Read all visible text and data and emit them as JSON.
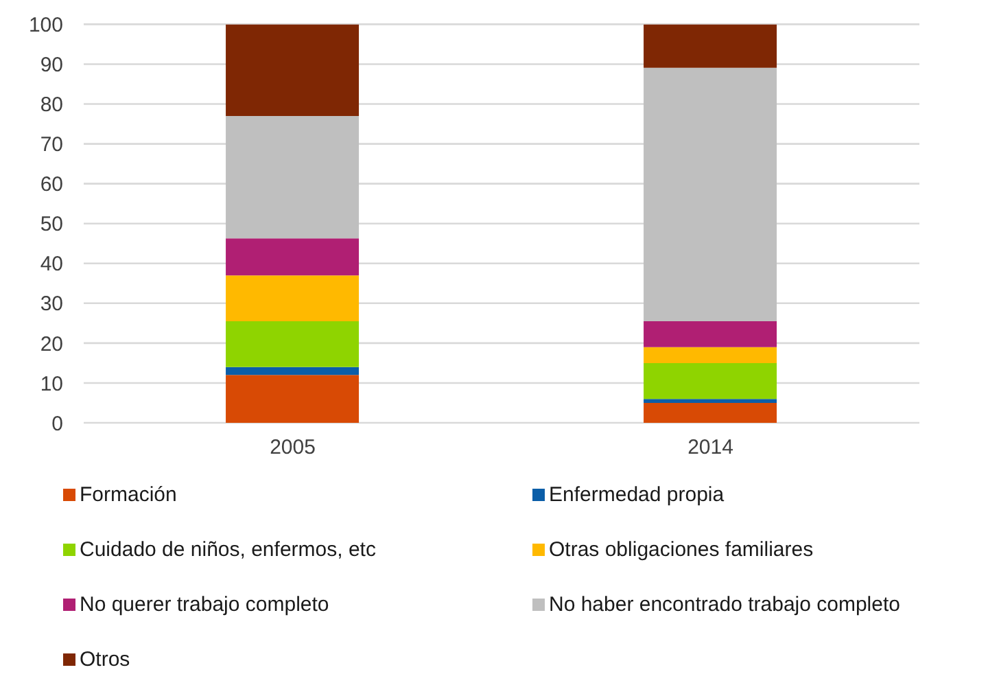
{
  "chart_data": {
    "type": "bar",
    "stacked": true,
    "categories": [
      "2005",
      "2014"
    ],
    "series": [
      {
        "name": "Formación",
        "color": "#d84a05",
        "values": [
          12,
          5
        ]
      },
      {
        "name": "Enfermedad propia",
        "color": "#0b5ea8",
        "values": [
          2,
          1
        ]
      },
      {
        "name": "Cuidado de niños, enfermos, etc",
        "color": "#8fd400",
        "values": [
          11.5,
          9
        ]
      },
      {
        "name": "Otras obligaciones familiares",
        "color": "#ffb900",
        "values": [
          11.5,
          4
        ]
      },
      {
        "name": "No querer trabajo completo",
        "color": "#b01f73",
        "values": [
          9.3,
          6.5
        ]
      },
      {
        "name": "No haber encontrado trabajo completo",
        "color": "#bfbfbf",
        "values": [
          30.7,
          63.6
        ]
      },
      {
        "name": "Otros",
        "color": "#7f2704",
        "values": [
          23,
          10.9
        ]
      }
    ],
    "ylim": [
      0,
      100
    ],
    "yticks": [
      0,
      10,
      20,
      30,
      40,
      50,
      60,
      70,
      80,
      90,
      100
    ],
    "grid": "y",
    "legend": "bottom"
  }
}
